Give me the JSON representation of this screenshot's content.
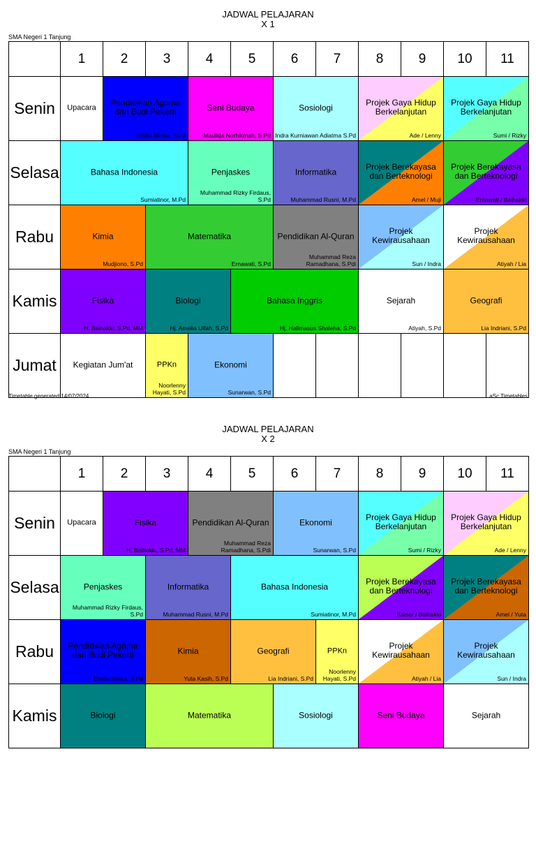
{
  "timetables": [
    {
      "title": "JADWAL PELAJARAN",
      "class": "X 1",
      "school": "SMA Negeri 1 Tanjung",
      "footer_left": "Timetable generated:14/07/2024",
      "footer_right": "aSc Timetables",
      "periods": [
        "1",
        "2",
        "3",
        "4",
        "5",
        "6",
        "7",
        "8",
        "9",
        "10",
        "11"
      ],
      "rows": [
        {
          "day": "Senin",
          "cells": [
            {
              "span": 1,
              "subject": "Upacara",
              "teacher": "",
              "bg": "#ffffff",
              "fg": "#000000"
            },
            {
              "span": 2,
              "subject": "Pendidikan Agama dan Budi Pekerti",
              "teacher": "Emilia Miska, S.Pd",
              "bg": "#0000ff",
              "fg": "#000000"
            },
            {
              "span": 2,
              "subject": "Seni Budaya",
              "teacher": "Maulida Norhikmah, S.Pd",
              "bg": "#ff00ff",
              "fg": "#000000"
            },
            {
              "span": 2,
              "subject": "Sosiologi",
              "teacher": "Indra Kurniawan Adiatma S.Pd",
              "bg": "#aaffff",
              "fg": "#000000"
            },
            {
              "span": 2,
              "subject": "Projek Gaya Hidup Berkelanjutan",
              "teacher": "Ade / Lenny",
              "bg": "#ffccff",
              "bg2": "#ffff66",
              "fg": "#000000"
            },
            {
              "span": 2,
              "subject": "Projek Gaya Hidup Berkelanjutan",
              "teacher": "Sumi / Rizky",
              "bg": "#55ffff",
              "bg2": "#77ffaa",
              "fg": "#000000"
            }
          ]
        },
        {
          "day": "Selasa",
          "cells": [
            {
              "span": 3,
              "subject": "Bahasa Indonesia",
              "teacher": "Sumiatinor, M.Pd",
              "bg": "#55ffff",
              "fg": "#000000"
            },
            {
              "span": 2,
              "subject": "Penjaskes",
              "teacher": "Muhammad Rizky Firdaus, S.Pd",
              "bg": "#66ffbb",
              "fg": "#000000"
            },
            {
              "span": 2,
              "subject": "Informatika",
              "teacher": "Muhammad Rusni, M.Pd",
              "bg": "#6666cc",
              "fg": "#000000"
            },
            {
              "span": 2,
              "subject": "Projek Berekayasa dan Berteknologi",
              "teacher": "Amel / Muji",
              "bg": "#008080",
              "bg2": "#ff8000",
              "fg": "#000000"
            },
            {
              "span": 2,
              "subject": "Projek Berekayasa dan Berteknologi",
              "teacher": "Ernawati / Baihakki",
              "bg": "#33cc33",
              "bg2": "#8000ff",
              "fg": "#000000"
            }
          ]
        },
        {
          "day": "Rabu",
          "cells": [
            {
              "span": 2,
              "subject": "Kimia",
              "teacher": "Mudjiono, S.Pd",
              "bg": "#ff8000",
              "fg": "#000000"
            },
            {
              "span": 3,
              "subject": "Matematika",
              "teacher": "Ernawati, S.Pd",
              "bg": "#33cc33",
              "fg": "#000000"
            },
            {
              "span": 2,
              "subject": "Pendidikan Al-Quran",
              "teacher": "Muhammad Reza Ramadhana, S.Pdi",
              "bg": "#808080",
              "fg": "#000000"
            },
            {
              "span": 2,
              "subject": "Projek Kewirausahaan",
              "teacher": "Sun / Indra",
              "bg": "#80c0ff",
              "bg2": "#aaffff",
              "fg": "#000000"
            },
            {
              "span": 2,
              "subject": "Projek Kewirausahaan",
              "teacher": "Atiyah / Lia",
              "bg": "#ffffff",
              "bg2": "#ffc040",
              "fg": "#000000"
            }
          ]
        },
        {
          "day": "Kamis",
          "cells": [
            {
              "span": 2,
              "subject": "Fisika",
              "teacher": "H. Baihakki, S.Pd, MM",
              "bg": "#8000ff",
              "fg": "#000000"
            },
            {
              "span": 2,
              "subject": "Biologi",
              "teacher": "Hj. Amelia Ulfah, S.Pd",
              "bg": "#008080",
              "fg": "#000000"
            },
            {
              "span": 3,
              "subject": "Bahasa Inggris",
              "teacher": "Hj. Halimasus Shaleha, S.Pd",
              "bg": "#00cc00",
              "fg": "#000000"
            },
            {
              "span": 2,
              "subject": "Sejarah",
              "teacher": "Atiyah, S.Pd",
              "bg": "#ffffff",
              "fg": "#000000"
            },
            {
              "span": 2,
              "subject": "Geografi",
              "teacher": "Lia Indriani, S.Pd",
              "bg": "#ffc040",
              "fg": "#000000"
            }
          ]
        },
        {
          "day": "Jumat",
          "cells": [
            {
              "span": 2,
              "subject": "Kegiatan Jum'at",
              "teacher": "",
              "bg": "#ffffff",
              "fg": "#000000"
            },
            {
              "span": 1,
              "subject": "PPKn",
              "teacher": "Noorlenny Hayati, S.Pd",
              "bg": "#ffff66",
              "fg": "#000000"
            },
            {
              "span": 2,
              "subject": "Ekonomi",
              "teacher": "Sunarwan, S.Pd",
              "bg": "#80c0ff",
              "fg": "#000000"
            },
            {
              "span": 1,
              "subject": "",
              "teacher": "",
              "bg": "#ffffff",
              "fg": "#000000"
            },
            {
              "span": 1,
              "subject": "",
              "teacher": "",
              "bg": "#ffffff",
              "fg": "#000000"
            },
            {
              "span": 1,
              "subject": "",
              "teacher": "",
              "bg": "#ffffff",
              "fg": "#000000"
            },
            {
              "span": 1,
              "subject": "",
              "teacher": "",
              "bg": "#ffffff",
              "fg": "#000000"
            },
            {
              "span": 1,
              "subject": "",
              "teacher": "",
              "bg": "#ffffff",
              "fg": "#000000"
            },
            {
              "span": 1,
              "subject": "",
              "teacher": "",
              "bg": "#ffffff",
              "fg": "#000000"
            }
          ]
        }
      ]
    },
    {
      "title": "JADWAL PELAJARAN",
      "class": "X 2",
      "school": "SMA Negeri 1 Tanjung",
      "footer_left": "",
      "footer_right": "",
      "periods": [
        "1",
        "2",
        "3",
        "4",
        "5",
        "6",
        "7",
        "8",
        "9",
        "10",
        "11"
      ],
      "rows": [
        {
          "day": "Senin",
          "cells": [
            {
              "span": 1,
              "subject": "Upacara",
              "teacher": "",
              "bg": "#ffffff",
              "fg": "#000000"
            },
            {
              "span": 2,
              "subject": "Fisika",
              "teacher": "H. Baihakki, S.Pd, MM",
              "bg": "#8000ff",
              "fg": "#000000"
            },
            {
              "span": 2,
              "subject": "Pendidikan Al-Quran",
              "teacher": "Muhammad Reza Ramadhana, S.Pdi",
              "bg": "#808080",
              "fg": "#000000"
            },
            {
              "span": 2,
              "subject": "Ekonomi",
              "teacher": "Sunarwan, S.Pd",
              "bg": "#80c0ff",
              "fg": "#000000"
            },
            {
              "span": 2,
              "subject": "Projek Gaya Hidup Berkelanjutan",
              "teacher": "Sumi / Rizky",
              "bg": "#55ffff",
              "bg2": "#77ffaa",
              "fg": "#000000"
            },
            {
              "span": 2,
              "subject": "Projek Gaya Hidup Berkelanjutan",
              "teacher": "Ade / Lenny",
              "bg": "#ffccff",
              "bg2": "#ffff66",
              "fg": "#000000"
            }
          ]
        },
        {
          "day": "Selasa",
          "cells": [
            {
              "span": 2,
              "subject": "Penjaskes",
              "teacher": "Muhammad Rizky Firdaus, S.Pd",
              "bg": "#66ffbb",
              "fg": "#000000"
            },
            {
              "span": 2,
              "subject": "Informatika",
              "teacher": "Muhammad Rusni, M.Pd",
              "bg": "#6666cc",
              "fg": "#000000"
            },
            {
              "span": 3,
              "subject": "Bahasa Indonesia",
              "teacher": "Sumiatinor, M.Pd",
              "bg": "#55ffff",
              "fg": "#000000"
            },
            {
              "span": 2,
              "subject": "Projek Berekayasa dan Berteknologi",
              "teacher": "Kaisar / Baihakki",
              "bg": "#bbff55",
              "bg2": "#8000ff",
              "fg": "#000000"
            },
            {
              "span": 2,
              "subject": "Projek Berekayasa dan Berteknologi",
              "teacher": "Amel / Yuta",
              "bg": "#008080",
              "bg2": "#cc6600",
              "fg": "#000000"
            }
          ]
        },
        {
          "day": "Rabu",
          "cells": [
            {
              "span": 2,
              "subject": "Pendidikan Agama dan Budi Pekerti",
              "teacher": "Emilia Miska, S.Pd",
              "bg": "#0000ff",
              "fg": "#000000"
            },
            {
              "span": 2,
              "subject": "Kimia",
              "teacher": "Yuta Kasih, S.Pd",
              "bg": "#cc6600",
              "fg": "#000000"
            },
            {
              "span": 2,
              "subject": "Geografi",
              "teacher": "Lia Indriani, S.Pd",
              "bg": "#ffc040",
              "fg": "#000000"
            },
            {
              "span": 1,
              "subject": "PPKn",
              "teacher": "Noorlenny Hayati, S.Pd",
              "bg": "#ffff66",
              "fg": "#000000"
            },
            {
              "span": 2,
              "subject": "Projek Kewirausahaan",
              "teacher": "Atiyah / Lia",
              "bg": "#ffffff",
              "bg2": "#ffc040",
              "fg": "#000000"
            },
            {
              "span": 2,
              "subject": "Projek Kewirausahaan",
              "teacher": "Sun / Indra",
              "bg": "#80c0ff",
              "bg2": "#aaffff",
              "fg": "#000000"
            }
          ]
        },
        {
          "day": "Kamis",
          "cells": [
            {
              "span": 2,
              "subject": "Biologi",
              "teacher": "",
              "bg": "#008080",
              "fg": "#000000"
            },
            {
              "span": 3,
              "subject": "Matematika",
              "teacher": "",
              "bg": "#bbff55",
              "fg": "#000000"
            },
            {
              "span": 2,
              "subject": "Sosiologi",
              "teacher": "",
              "bg": "#aaffff",
              "fg": "#000000"
            },
            {
              "span": 2,
              "subject": "Seni Budaya",
              "teacher": "",
              "bg": "#ff00ff",
              "fg": "#000000"
            },
            {
              "span": 2,
              "subject": "Sejarah",
              "teacher": "",
              "bg": "#ffffff",
              "fg": "#000000"
            }
          ]
        }
      ]
    }
  ]
}
